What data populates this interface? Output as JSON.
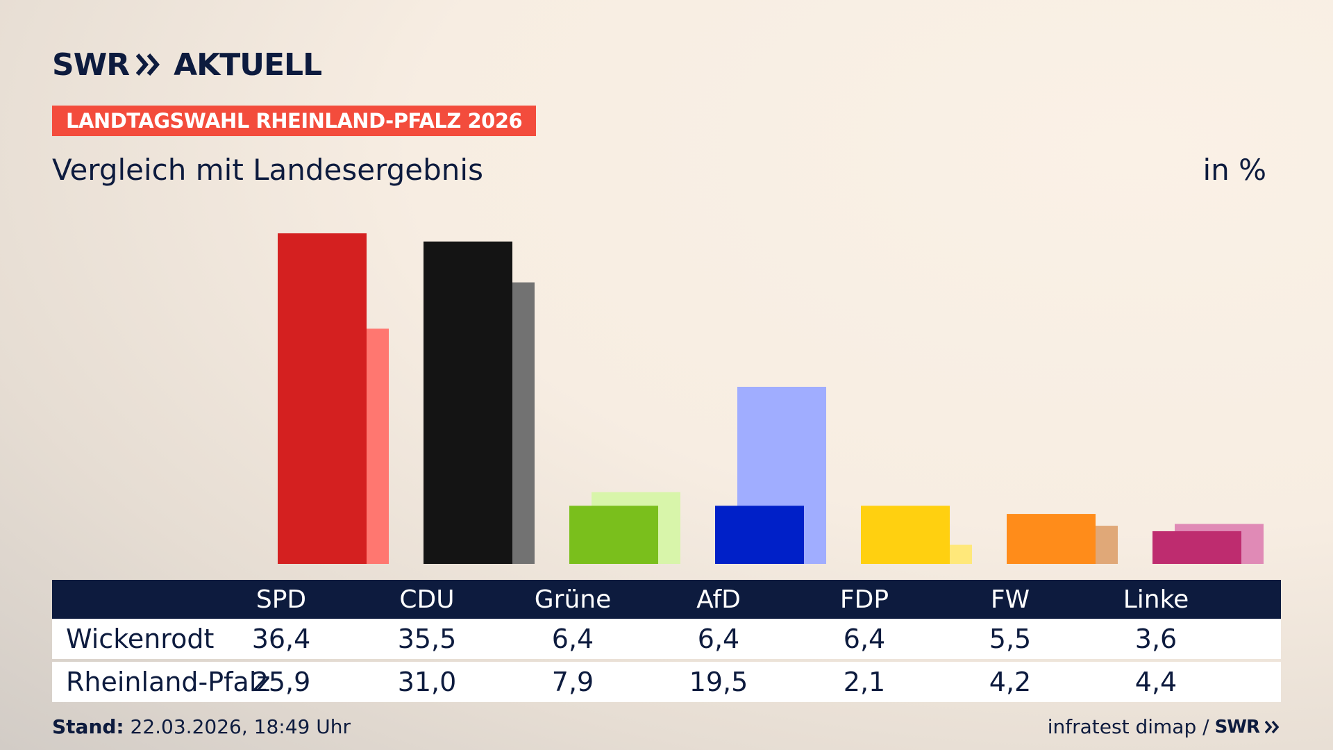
{
  "brand": {
    "swr": "SWR",
    "aktuell": "AKTUELL"
  },
  "tag": "LANDTAGSWAHL RHEINLAND-PFALZ 2026",
  "subtitle": "Vergleich mit Landesergebnis",
  "unit": "in %",
  "colors": {
    "navy": "#0d1b3e",
    "tag": "#f34c3c",
    "SPD": [
      "#d42020",
      "#ff7770"
    ],
    "CDU": [
      "#141414",
      "#727272"
    ],
    "Grüne": [
      "#7abf1c",
      "#d8f5aa"
    ],
    "AfD": [
      "#0020c8",
      "#a0adff"
    ],
    "FDP": [
      "#ffd010",
      "#ffe87a"
    ],
    "FW": [
      "#ff8c1a",
      "#e0a878"
    ],
    "Linke": [
      "#be2c6f",
      "#e08ab6"
    ]
  },
  "chart_data": {
    "type": "bar",
    "categories": [
      "SPD",
      "CDU",
      "Grüne",
      "AfD",
      "FDP",
      "FW",
      "Linke"
    ],
    "series": [
      {
        "name": "Wickenrodt",
        "values": [
          36.4,
          35.5,
          6.4,
          6.4,
          6.4,
          5.5,
          3.6
        ]
      },
      {
        "name": "Rheinland-Pfalz",
        "values": [
          25.9,
          31.0,
          7.9,
          19.5,
          2.1,
          4.2,
          4.4
        ]
      }
    ],
    "ylim": [
      0,
      36.4
    ]
  },
  "table": {
    "rows": [
      {
        "label": "Wickenrodt",
        "values": [
          "36,4",
          "35,5",
          "6,4",
          "6,4",
          "6,4",
          "5,5",
          "3,6"
        ]
      },
      {
        "label": "Rheinland-Pfalz",
        "values": [
          "25,9",
          "31,0",
          "7,9",
          "19,5",
          "2,1",
          "4,2",
          "4,4"
        ]
      }
    ]
  },
  "footer": {
    "stand_label": "Stand:",
    "stand_value": " 22.03.2026, 18:49 Uhr",
    "source": "infratest dimap /",
    "source_brand": "SWR"
  }
}
